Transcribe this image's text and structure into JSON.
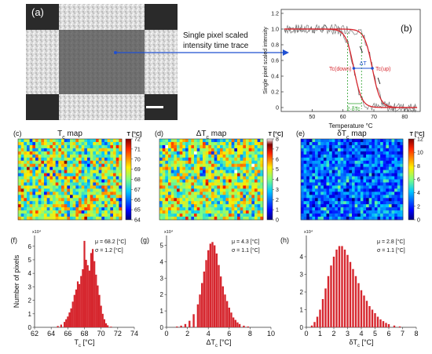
{
  "panel_a": {
    "label": "(a)",
    "annotation": "Single pixel scaled\nintensity time trace"
  },
  "chart_data": [
    {
      "id": "b",
      "type": "line",
      "panel_label": "(b)",
      "xlabel": "Temperature °C",
      "ylabel": "Single pixel scaled intensity",
      "xlim": [
        40,
        85
      ],
      "ylim": [
        -0.05,
        1.25
      ],
      "xticks": [
        50,
        60,
        70,
        80
      ],
      "yticks": [
        0,
        0.2,
        0.4,
        0.6,
        0.8,
        1.0,
        1.2
      ],
      "colors": {
        "data": "#666666",
        "fit": "#d6262e",
        "dT": "#1f4fd1",
        "dTc": "#2ca02c"
      },
      "series": [
        {
          "kind": "cooling",
          "midpoint": 63.5,
          "width": 1.3
        },
        {
          "kind": "heating",
          "midpoint": 69.5,
          "width": 1.3
        }
      ],
      "annotations": {
        "tc_down": "Tc(down)",
        "tc_up": "Tc(up)",
        "delta_t": "ΔT",
        "delta_t_value": 6,
        "two_delta_tc": "2·δTc"
      }
    },
    {
      "id": "c",
      "type": "heatmap",
      "panel_label": "(c)",
      "title": "Tc map",
      "cbar_title": "T [°C]",
      "cbar_ticks": [
        72,
        71,
        70,
        69,
        68,
        67,
        66,
        65,
        64
      ],
      "vlim": [
        64,
        72
      ],
      "mean": 68.2,
      "std": 1.2
    },
    {
      "id": "d",
      "type": "heatmap",
      "panel_label": "(d)",
      "title": "ΔTc map",
      "cbar_title": "T [°C]",
      "cbar_ticks": [
        8,
        7,
        6,
        5,
        4,
        3,
        2,
        1,
        0
      ],
      "vlim": [
        0,
        8
      ],
      "mean": 4.3,
      "std": 1.1
    },
    {
      "id": "e",
      "type": "heatmap",
      "panel_label": "(e)",
      "title": "δTc map",
      "cbar_title": "T [°C]",
      "cbar_ticks": [
        12,
        10,
        8,
        6,
        4,
        2,
        0
      ],
      "vlim": [
        0,
        12
      ],
      "mean": 2.8,
      "std": 1.1
    },
    {
      "id": "f",
      "type": "bar",
      "panel_label": "(f)",
      "xlabel": "Tc [°C]",
      "ylabel": "Number of pixels",
      "y_exponent": "x10⁴",
      "xlim": [
        62,
        74
      ],
      "ylim": [
        0,
        6.8
      ],
      "xticks": [
        62,
        64,
        66,
        68,
        70,
        72,
        74
      ],
      "yticks": [
        0,
        1,
        2,
        3,
        4,
        5,
        6
      ],
      "stats": [
        "μ = 68.2 [°C]",
        "σ = 1.2 [°C]"
      ],
      "bars": [
        [
          64.8,
          0.1
        ],
        [
          65.2,
          0.2
        ],
        [
          65.6,
          0.4
        ],
        [
          65.8,
          0.6
        ],
        [
          66.0,
          0.8
        ],
        [
          66.2,
          1.1
        ],
        [
          66.4,
          1.4
        ],
        [
          66.6,
          1.9
        ],
        [
          66.8,
          2.4
        ],
        [
          67.0,
          2.8
        ],
        [
          67.2,
          3.4
        ],
        [
          67.4,
          3.2
        ],
        [
          67.6,
          3.8
        ],
        [
          67.8,
          4.3
        ],
        [
          68.0,
          6.4
        ],
        [
          68.2,
          5.0
        ],
        [
          68.4,
          4.6
        ],
        [
          68.6,
          4.2
        ],
        [
          68.8,
          5.5
        ],
        [
          69.0,
          5.8
        ],
        [
          69.2,
          4.9
        ],
        [
          69.4,
          3.9
        ],
        [
          69.6,
          3.1
        ],
        [
          69.8,
          2.4
        ],
        [
          70.0,
          1.6
        ],
        [
          70.2,
          1.0
        ],
        [
          70.4,
          0.6
        ],
        [
          70.6,
          0.3
        ],
        [
          70.8,
          0.15
        ],
        [
          71.2,
          0.05
        ]
      ]
    },
    {
      "id": "g",
      "type": "bar",
      "panel_label": "(g)",
      "xlabel": "ΔTc [°C]",
      "y_exponent": "x10⁴",
      "xlim": [
        0,
        10
      ],
      "ylim": [
        0,
        5.6
      ],
      "xticks": [
        0,
        2,
        4,
        6,
        8,
        10
      ],
      "yticks": [
        0,
        1,
        2,
        3,
        4,
        5
      ],
      "stats": [
        "μ = 4.3 [°C]",
        "σ = 1.1 [°C]"
      ],
      "bars": [
        [
          1.0,
          0.05
        ],
        [
          1.4,
          0.1
        ],
        [
          1.8,
          0.2
        ],
        [
          2.2,
          0.4
        ],
        [
          2.6,
          0.8
        ],
        [
          3.0,
          1.4
        ],
        [
          3.2,
          2.0
        ],
        [
          3.4,
          2.7
        ],
        [
          3.6,
          3.4
        ],
        [
          3.8,
          4.1
        ],
        [
          4.0,
          4.7
        ],
        [
          4.2,
          5.1
        ],
        [
          4.4,
          5.2
        ],
        [
          4.6,
          5.0
        ],
        [
          4.8,
          4.5
        ],
        [
          5.0,
          3.8
        ],
        [
          5.2,
          3.1
        ],
        [
          5.4,
          2.5
        ],
        [
          5.6,
          2.0
        ],
        [
          5.8,
          1.6
        ],
        [
          6.0,
          1.2
        ],
        [
          6.2,
          0.9
        ],
        [
          6.4,
          0.6
        ],
        [
          6.6,
          0.45
        ],
        [
          6.8,
          0.3
        ],
        [
          7.0,
          0.2
        ],
        [
          7.4,
          0.1
        ],
        [
          7.8,
          0.05
        ]
      ]
    },
    {
      "id": "h",
      "type": "bar",
      "panel_label": "(h)",
      "xlabel": "δTc [°C]",
      "y_exponent": "x10⁴",
      "xlim": [
        0,
        8
      ],
      "ylim": [
        0,
        5.2
      ],
      "xticks": [
        0,
        1,
        2,
        3,
        4,
        5,
        6,
        7,
        8
      ],
      "yticks": [
        0,
        1,
        2,
        3,
        4
      ],
      "stats": [
        "μ = 2.8 [°C]",
        "σ = 1.1 [°C]"
      ],
      "bars": [
        [
          0.4,
          0.1
        ],
        [
          0.6,
          0.3
        ],
        [
          0.8,
          0.6
        ],
        [
          1.0,
          1.0
        ],
        [
          1.2,
          1.6
        ],
        [
          1.4,
          2.2
        ],
        [
          1.6,
          2.9
        ],
        [
          1.8,
          3.5
        ],
        [
          2.0,
          4.0
        ],
        [
          2.2,
          4.4
        ],
        [
          2.4,
          4.6
        ],
        [
          2.6,
          4.6
        ],
        [
          2.8,
          4.4
        ],
        [
          3.0,
          4.1
        ],
        [
          3.2,
          3.7
        ],
        [
          3.4,
          3.3
        ],
        [
          3.6,
          2.9
        ],
        [
          3.8,
          2.5
        ],
        [
          4.0,
          2.1
        ],
        [
          4.2,
          1.8
        ],
        [
          4.4,
          1.5
        ],
        [
          4.6,
          1.2
        ],
        [
          4.8,
          1.0
        ],
        [
          5.0,
          0.8
        ],
        [
          5.2,
          0.6
        ],
        [
          5.4,
          0.45
        ],
        [
          5.6,
          0.35
        ],
        [
          5.8,
          0.25
        ],
        [
          6.0,
          0.18
        ],
        [
          6.4,
          0.1
        ],
        [
          6.8,
          0.05
        ]
      ]
    }
  ]
}
